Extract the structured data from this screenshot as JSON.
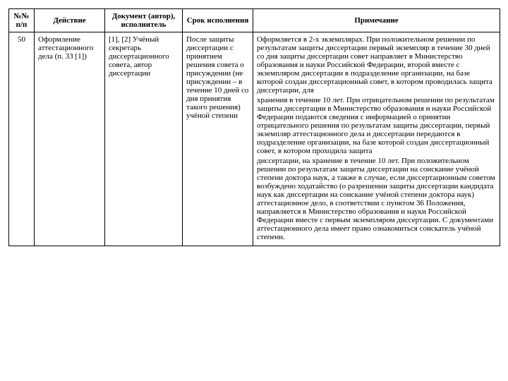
{
  "table": {
    "columns": [
      "№№ п/п",
      "Действие",
      "Документ (автор), исполнитель",
      "Срок исполнения",
      "Примечание"
    ],
    "row": {
      "num": "50",
      "action": "Оформление аттестационного дела (п. 33 [1])",
      "doc": "[1], [2] Учёный секретарь диссертационного совета, автор диссертации",
      "deadline": "После защиты диссертации с принятием решения совета о присуждении (не присуждении – в течение 10 дней со дня принятия такого решения) учёной степени",
      "note_p1": "Оформляется в 2-х экземплярах. При положительном решении по результатам защиты диссертации первый экземпляр в течение 30 дней со дня защиты диссертации совет направляет в Министерство образования и науки Российской Федерации, второй вместе с экземпляром диссертации в подразделение организации, на базе которой создан диссертационный совет, в котором проводилась защита диссертации, для",
      "note_p2": "хранения в течение 10 лет. При отрицательном решении по результатам защиты диссертации в Министерство образования и науки Российской Федерации подаются сведения с информацией о принятии отрицательного решения по результатам защиты диссертации, первый экземпляр аттестационного дела и диссертации передаются в подразделение организации, на базе которой создан диссертационный совет, в котором проходила защита",
      "note_p3": "диссертации, на хранение в течение 10 лет. При положительном решении по результатам защиты диссертации на соискание учёной степени доктора наук, а также в случае, если диссертационным советом возбуждено ходатайство (о разрешении защиты диссертации кандидата наук как диссертации на соискание учёной степени доктора наук) аттестационное дело, в соответствии с пунктом 36 Положения, направляется в Министерство образования и науки Российской Федерации вместе с первым экземпляром диссертации. С документами аттестационного дела имеет право ознакомиться соискатель учёной степени."
    }
  }
}
